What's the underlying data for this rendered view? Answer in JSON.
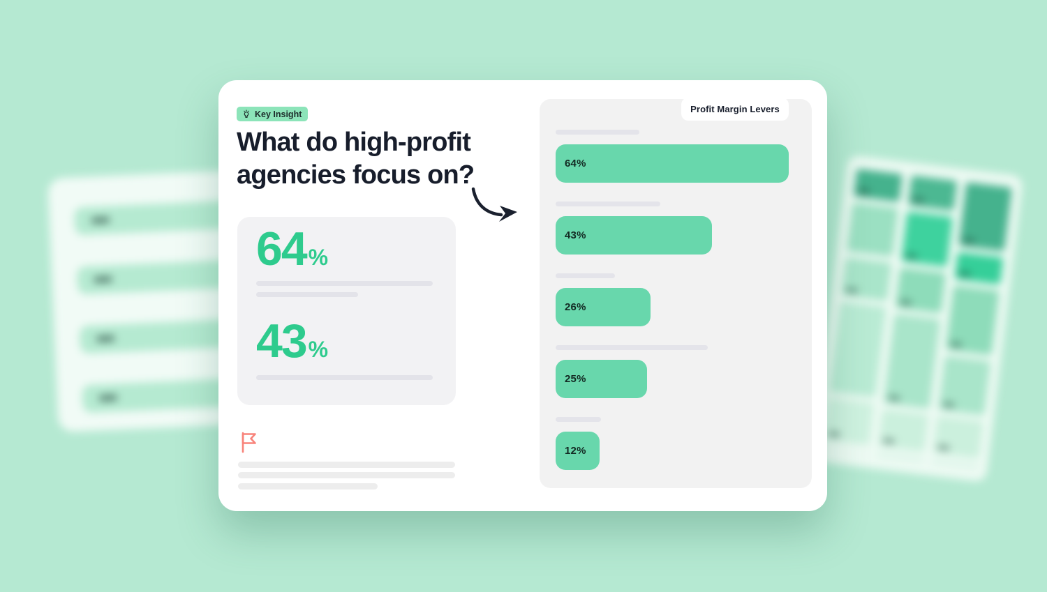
{
  "colors": {
    "background": "#b5e9d2",
    "accent_green": "#2ecb8d",
    "bar_green": "#68d7ac",
    "badge_green": "#8ce4b9",
    "heading_dark": "#171d2b",
    "panel_gray": "#f2f2f2",
    "flag_coral": "#f8837a"
  },
  "badge": {
    "label": "Key Insight",
    "icon": "lightbulb-icon"
  },
  "heading": {
    "line1": "What do high-profit",
    "line2": "agencies focus on?"
  },
  "stat_card": {
    "stats": [
      {
        "value": "64",
        "suffix": "%"
      },
      {
        "value": "43",
        "suffix": "%"
      }
    ]
  },
  "panel": {
    "title": "Profit Margin Levers"
  },
  "chart_data": {
    "type": "bar",
    "orientation": "horizontal",
    "title": "Profit Margin Levers",
    "values": [
      64,
      43,
      26,
      25,
      12
    ],
    "unit": "%",
    "categories": [
      "",
      "",
      "",
      "",
      ""
    ],
    "labels_shown_as": "redacted-placeholder-lines",
    "xlim": [
      0,
      100
    ],
    "bar_color": "#68d7ac",
    "grid": false,
    "legend": false
  }
}
